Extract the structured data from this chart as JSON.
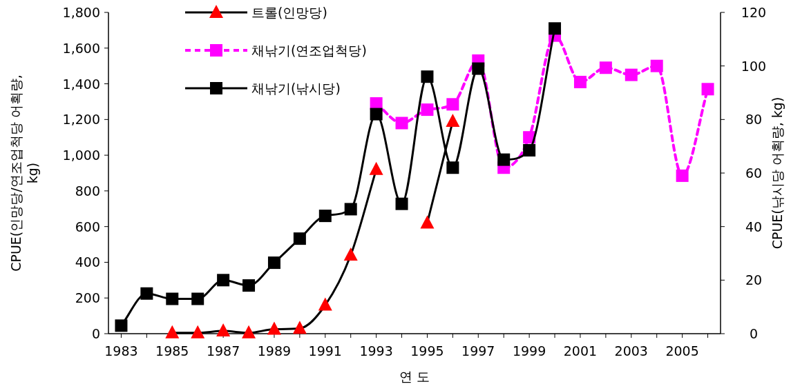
{
  "chart_data": {
    "type": "line",
    "xlabel": "연 도",
    "ylabel": "CPUE(인망당/연조업척당 어획량, kg)",
    "y2label": "CPUE(낚시당 어획량, kg)",
    "x": [
      1983,
      1984,
      1985,
      1986,
      1987,
      1988,
      1989,
      1990,
      1991,
      1992,
      1993,
      1994,
      1995,
      1996,
      1997,
      1998,
      1999,
      2000,
      2001,
      2002,
      2003,
      2004,
      2005,
      2006
    ],
    "series": [
      {
        "name": "트롤(인망당)",
        "color": "#ff0000",
        "marker": "triangle",
        "line_style": "solid",
        "values": [
          null,
          null,
          5,
          5,
          15,
          5,
          25,
          30,
          160,
          440,
          920,
          null,
          620,
          1190,
          null,
          null,
          null,
          null,
          null,
          null,
          null,
          null,
          null,
          null
        ]
      },
      {
        "name": "채낚기(연조업척당)",
        "color": "#ff00ff",
        "marker": "square",
        "line_style": "dashed",
        "values": [
          null,
          null,
          null,
          null,
          null,
          null,
          null,
          null,
          null,
          null,
          1290,
          1180,
          1255,
          1285,
          1530,
          930,
          1100,
          1670,
          1410,
          1490,
          1450,
          1500,
          885,
          1370
        ]
      },
      {
        "name": "채낚기(낚시당)",
        "color": "#000000",
        "marker": "square",
        "line_style": "solid",
        "axis": "y2",
        "values": [
          3,
          15,
          13,
          13,
          20,
          18,
          26.5,
          35.5,
          44,
          46.5,
          82,
          48.5,
          96,
          62,
          99,
          65,
          68.5,
          114,
          null,
          null,
          null,
          null,
          null,
          null
        ]
      }
    ],
    "xlim": [
      1982.5,
      2006.5
    ],
    "xticks": [
      1983,
      {
        "value": 1984,
        "label": null
      },
      1985,
      {
        "value": 1986,
        "label": null
      },
      1987,
      {
        "value": 1988,
        "label": null
      },
      1989,
      {
        "value": 1990,
        "label": null
      },
      1991,
      {
        "value": 1992,
        "label": null
      },
      1993,
      {
        "value": 1994,
        "label": null
      },
      1995,
      {
        "value": 1996,
        "label": null
      },
      1997,
      {
        "value": 1998,
        "label": null
      },
      1999,
      {
        "value": 2000,
        "label": null
      },
      2001,
      {
        "value": 2002,
        "label": null
      },
      2003,
      {
        "value": 2004,
        "label": null
      },
      2005,
      {
        "value": 2006,
        "label": null
      }
    ],
    "ylim": [
      0,
      1800
    ],
    "yticks": [
      0,
      200,
      400,
      600,
      800,
      {
        "value": 1000,
        "label": "1,000"
      },
      {
        "value": 1200,
        "label": "1,200"
      },
      {
        "value": 1400,
        "label": "1,400"
      },
      {
        "value": 1600,
        "label": "1,600"
      },
      {
        "value": 1800,
        "label": "1,800"
      }
    ],
    "y2lim": [
      0,
      120
    ],
    "y2ticks": [
      0,
      20,
      40,
      60,
      80,
      100,
      120
    ],
    "grid": false,
    "legend": "top left"
  }
}
